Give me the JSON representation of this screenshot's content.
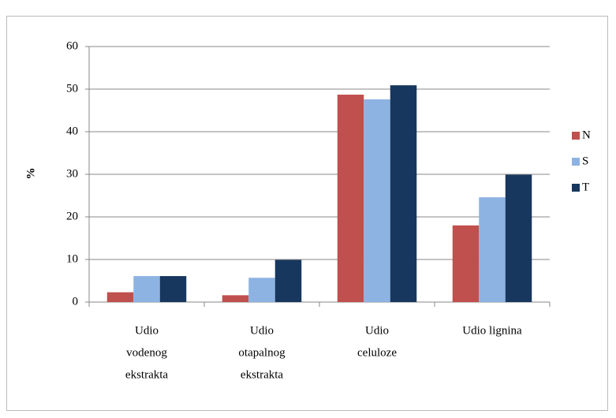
{
  "chart_data": {
    "type": "bar",
    "y_label": "%",
    "categories": [
      [
        "Udio",
        "vodenog",
        "ekstrakta"
      ],
      [
        "Udio",
        "otapalnog",
        "ekstrakta"
      ],
      [
        "Udio",
        "celuloze"
      ],
      [
        "Udio lignina"
      ]
    ],
    "series": [
      {
        "name": "N",
        "color": "#c0504d",
        "values": [
          2.3,
          1.6,
          48.7,
          18
        ]
      },
      {
        "name": "S",
        "color": "#8db3e2",
        "values": [
          6.1,
          5.7,
          47.6,
          24.6
        ]
      },
      {
        "name": "T",
        "color": "#17375e",
        "values": [
          6.1,
          9.9,
          50.9,
          29.9
        ]
      }
    ],
    "ylim": [
      0,
      60
    ],
    "yticks": [
      0,
      10,
      20,
      30,
      40,
      50,
      60
    ],
    "grid": true,
    "legend": "right"
  }
}
